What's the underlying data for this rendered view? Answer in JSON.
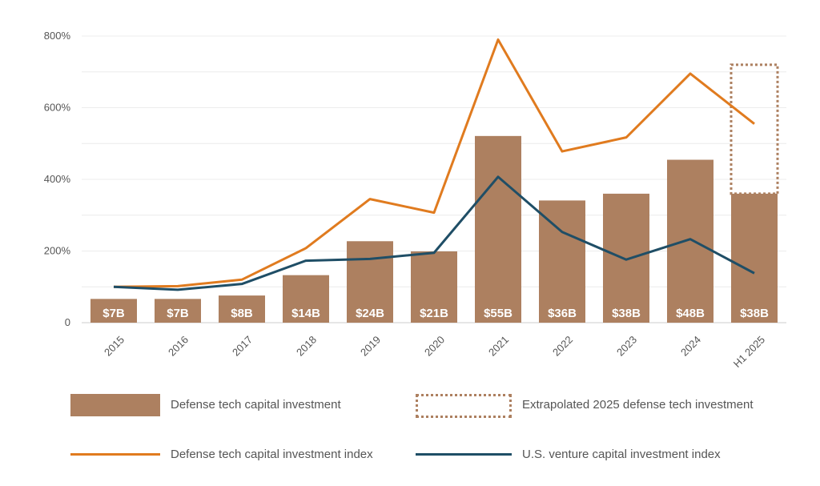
{
  "chart_data": {
    "type": "bar",
    "categories": [
      "2015",
      "2016",
      "2017",
      "2018",
      "2019",
      "2020",
      "2021",
      "2022",
      "2023",
      "2024",
      "H1 2025"
    ],
    "bar_values": [
      7,
      7,
      8,
      14,
      24,
      21,
      55,
      36,
      38,
      48,
      38
    ],
    "bar_labels": [
      "$7B",
      "$7B",
      "$8B",
      "$14B",
      "$24B",
      "$21B",
      "$55B",
      "$36B",
      "$38B",
      "$48B",
      "$38B"
    ],
    "extrapolated": {
      "category": "H1 2025",
      "value": 76
    },
    "series": [
      {
        "name": "Defense tech capital investment index",
        "values": [
          100,
          102,
          120,
          208,
          345,
          307,
          790,
          478,
          517,
          695,
          555
        ],
        "color": "#e07b1f"
      },
      {
        "name": "U.S. venture capital investment index",
        "values": [
          100,
          92,
          108,
          173,
          178,
          195,
          407,
          253,
          176,
          233,
          138
        ],
        "color": "#1f4e66"
      }
    ],
    "ylim": [
      0,
      800
    ],
    "y_ticks": [
      "0",
      "200%",
      "400%",
      "600%",
      "800%"
    ],
    "bar_color": "#ad8060",
    "legend": {
      "bar": "Defense tech capital investment",
      "extrapolated": "Extrapolated 2025 defense tech investment",
      "defense_index": "Defense tech capital investment index",
      "vc_index": "U.S. venture capital investment index"
    }
  }
}
